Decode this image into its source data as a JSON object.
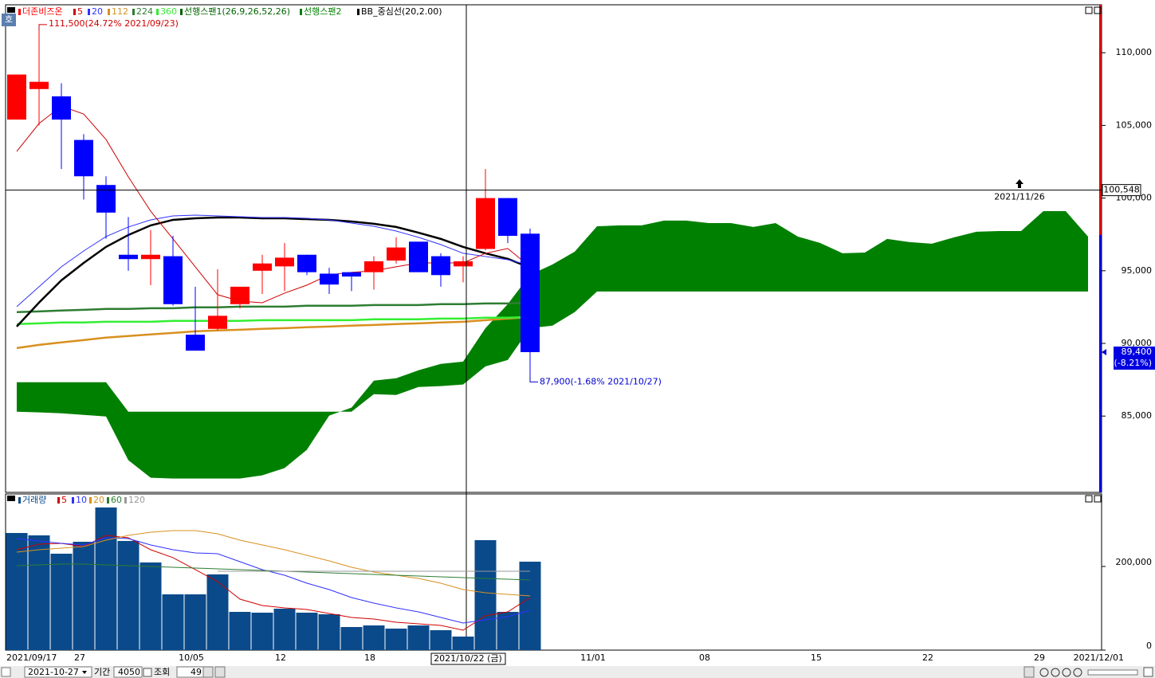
{
  "chart_data": [
    {
      "type": "candlestick",
      "title": "더존비즈온",
      "categories": [
        "2021/09/17",
        null,
        null,
        "27",
        null,
        null,
        null,
        null,
        "10/05",
        null,
        null,
        null,
        "12",
        null,
        null,
        null,
        "18",
        null,
        null,
        null,
        null,
        null,
        null,
        null,
        null,
        null,
        "11/01",
        null,
        null,
        null,
        null,
        "08",
        null,
        null,
        null,
        null,
        "15",
        null,
        null,
        null,
        null,
        "22",
        null,
        null,
        null,
        null,
        "29",
        null,
        "2021/12/01"
      ],
      "open": [
        105400,
        107500,
        107000,
        104000,
        100900,
        96100,
        95800,
        96000,
        90600,
        91000,
        92700,
        95000,
        95300,
        96100,
        94800,
        94900,
        94900,
        95700,
        97000,
        96000,
        95300,
        96500,
        100000,
        97550,
        null,
        null,
        null,
        null,
        null,
        null,
        null,
        null,
        null,
        null,
        null,
        null,
        null,
        null,
        null,
        null,
        null,
        null,
        null,
        null,
        null,
        null,
        null,
        null,
        null
      ],
      "high": [
        108500,
        111500,
        107900,
        104400,
        101500,
        98700,
        97800,
        97400,
        93900,
        95100,
        93900,
        96100,
        96900,
        96100,
        95200,
        94900,
        96000,
        97300,
        97000,
        96200,
        96000,
        102000,
        100000,
        97900,
        null,
        null,
        null,
        null,
        null,
        null,
        null,
        null,
        null,
        null,
        null,
        null,
        null,
        null,
        null,
        null,
        null,
        null,
        null,
        null,
        null,
        null,
        null,
        null,
        null
      ],
      "low": [
        105400,
        105000,
        102000,
        99900,
        97200,
        95000,
        94000,
        92600,
        89500,
        90900,
        92400,
        93400,
        93600,
        94700,
        93400,
        93600,
        93700,
        95500,
        94900,
        93900,
        94200,
        96400,
        96900,
        87900,
        null,
        null,
        null,
        null,
        null,
        null,
        null,
        null,
        null,
        null,
        null,
        null,
        null,
        null,
        null,
        null,
        null,
        null,
        null,
        null,
        null,
        null,
        null,
        null,
        null
      ],
      "close": [
        108500,
        108000,
        105400,
        101500,
        99000,
        95800,
        96100,
        92700,
        89500,
        91900,
        93900,
        95500,
        95900,
        94900,
        94050,
        94600,
        95650,
        96600,
        94900,
        94700,
        95650,
        100000,
        97400,
        89400,
        null,
        null,
        null,
        null,
        null,
        null,
        null,
        null,
        null,
        null,
        null,
        null,
        null,
        null,
        null,
        null,
        null,
        null,
        null,
        null,
        null,
        null,
        null,
        null,
        null
      ],
      "up_color": "#ff0000",
      "down_color": "#0000ff",
      "series": [
        {
          "name": "5",
          "color": "#d00000",
          "width": 1,
          "values": [
            103210,
            105130,
            106330,
            105780,
            104030,
            101460,
            99100,
            97190,
            95270,
            93350,
            92910,
            92800,
            93460,
            94010,
            94720,
            94890,
            95000,
            95270,
            95540,
            95540,
            95540,
            96200,
            96530,
            95270,
            null,
            null,
            null,
            null,
            null,
            null,
            null,
            null,
            null,
            null,
            null,
            null,
            null,
            null,
            null,
            null,
            null,
            null,
            null,
            null,
            null,
            null,
            null,
            null,
            null
          ]
        },
        {
          "name": "20",
          "color": "#3030ff",
          "width": 1,
          "values": [
            92530,
            93900,
            95270,
            96360,
            97350,
            98010,
            98500,
            98770,
            98830,
            98770,
            98720,
            98660,
            98660,
            98610,
            98500,
            98280,
            98060,
            97730,
            97300,
            96800,
            96200,
            95980,
            95760,
            95380,
            null,
            null,
            null,
            null,
            null,
            null,
            null,
            null,
            null,
            null,
            null,
            null,
            null,
            null,
            null,
            null,
            null,
            null,
            null,
            null,
            null,
            null,
            null,
            null,
            null
          ]
        },
        {
          "name": "112",
          "color": "#d89020",
          "width": 2.5,
          "values": [
            89680,
            89900,
            90070,
            90230,
            90400,
            90510,
            90620,
            90720,
            90830,
            90890,
            90940,
            91000,
            91050,
            91110,
            91160,
            91220,
            91270,
            91330,
            91380,
            91440,
            91490,
            91600,
            91710,
            91820,
            null,
            null,
            null,
            null,
            null,
            null,
            null,
            null,
            null,
            null,
            null,
            null,
            null,
            null,
            null,
            null,
            null,
            null,
            null,
            null,
            null,
            null,
            null,
            null,
            null
          ]
        },
        {
          "name": "224",
          "color": "#2e7d32",
          "width": 2.5,
          "values": [
            92150,
            92200,
            92260,
            92310,
            92370,
            92370,
            92420,
            92420,
            92480,
            92480,
            92530,
            92530,
            92530,
            92590,
            92590,
            92590,
            92640,
            92640,
            92640,
            92700,
            92700,
            92750,
            92750,
            92810,
            null,
            null,
            null,
            null,
            null,
            null,
            null,
            null,
            null,
            null,
            null,
            null,
            null,
            null,
            null,
            null,
            null,
            null,
            null,
            null,
            null,
            null,
            null,
            null,
            null
          ]
        },
        {
          "name": "360",
          "color": "#33ee33",
          "width": 2.5,
          "values": [
            91330,
            91380,
            91440,
            91440,
            91490,
            91490,
            91490,
            91550,
            91550,
            91550,
            91550,
            91600,
            91600,
            91600,
            91600,
            91600,
            91660,
            91660,
            91660,
            91710,
            91710,
            91770,
            91770,
            91820,
            null,
            null,
            null,
            null,
            null,
            null,
            null,
            null,
            null,
            null,
            null,
            null,
            null,
            null,
            null,
            null,
            null,
            null,
            null,
            null,
            null,
            null,
            null,
            null,
            null
          ]
        },
        {
          "name": "BB_중심선(20,2.00)",
          "color": "#000000",
          "width": 2.5,
          "values": [
            91160,
            92810,
            94340,
            95540,
            96640,
            97460,
            98120,
            98500,
            98610,
            98660,
            98660,
            98610,
            98610,
            98550,
            98500,
            98390,
            98230,
            98010,
            97620,
            97190,
            96640,
            96200,
            95820,
            95210,
            null,
            null,
            null,
            null,
            null,
            null,
            null,
            null,
            null,
            null,
            null,
            null,
            null,
            null,
            null,
            null,
            null,
            null,
            null,
            null,
            null,
            null,
            null,
            null,
            null
          ]
        }
      ],
      "cloud": {
        "color": "#008000",
        "span1": {
          "name": "선행스팬1(26,9,26,52,26)",
          "color": "#006400",
          "values": [
            85300,
            85250,
            85190,
            85080,
            84970,
            81960,
            80760,
            80700,
            80700,
            80700,
            80700,
            80920,
            81420,
            82680,
            85030,
            85580,
            87440,
            87600,
            88150,
            88590,
            88750,
            91050,
            92700,
            94720,
            95430,
            96310,
            98060,
            98120,
            98120,
            98450,
            98450,
            98280,
            98280,
            98010,
            98280,
            97350,
            96910,
            96200,
            96250,
            97190,
            96970,
            96860,
            97300,
            97680,
            97730,
            97730,
            99100,
            99100,
            97350
          ]
        },
        "span2": {
          "name": "선행스팬2",
          "color": "#008000",
          "values": [
            87330,
            87330,
            87330,
            87330,
            87330,
            85300,
            85300,
            85300,
            85300,
            85300,
            85300,
            85300,
            85300,
            85300,
            85300,
            85300,
            86510,
            86450,
            87000,
            87060,
            87170,
            88420,
            88860,
            91050,
            91220,
            92150,
            93570,
            93570,
            93570,
            93570,
            93570,
            93570,
            93570,
            93570,
            93570,
            93570,
            93570,
            93570,
            93570,
            93570,
            93570,
            93570,
            93570,
            93570,
            93570,
            93570,
            93570,
            93570,
            93570
          ]
        }
      },
      "annotations": [
        "111,500(24.72% 2021/09/23)",
        "87,900(-1.68% 2021/10/27)"
      ],
      "crosshair": {
        "price": {
          "value": 100548,
          "label": "100,548"
        },
        "date": "2021/11/26",
        "x_label": "2021/10/22 (금)"
      },
      "last": {
        "value": 89400,
        "label": "89,400",
        "change": "(-8.21%)"
      },
      "ylim": [
        79750,
        113300
      ],
      "yticks": [
        {
          "value": 85000,
          "label": "85,000"
        },
        {
          "value": 90000,
          "label": "90,000"
        },
        {
          "value": 95000,
          "label": "95,000"
        },
        {
          "value": 100000,
          "label": "100,000"
        },
        {
          "value": 105000,
          "label": "105,000"
        },
        {
          "value": 110000,
          "label": "110,000"
        }
      ]
    },
    {
      "type": "bar",
      "title": "거래량",
      "color": "#0a4a8a",
      "values": [
        280000,
        274300,
        230500,
        259000,
        341000,
        261000,
        209500,
        133300,
        133300,
        181000,
        91400,
        89500,
        99000,
        89500,
        85700,
        55200,
        59000,
        51400,
        59000,
        47600,
        32400,
        262900,
        91400,
        211400
      ],
      "series": [
        {
          "name": "5",
          "color": "#d00000",
          "values": [
            240000,
            253300,
            255200,
            247600,
            274300,
            268600,
            240000,
            221000,
            192400,
            163800,
            121900,
            106700,
            101000,
            97100,
            87600,
            78100,
            74300,
            66700,
            62900,
            59000,
            47600,
            81900,
            91400,
            125700
          ]
        },
        {
          "name": "10",
          "color": "#3030ff",
          "values": [
            266700,
            261000,
            255200,
            251400,
            268600,
            266700,
            251400,
            240000,
            232400,
            230500,
            211400,
            192400,
            179000,
            160000,
            144800,
            125700,
            112400,
            101000,
            91400,
            78100,
            64800,
            72400,
            80000,
            95200
          ]
        },
        {
          "name": "20",
          "color": "#d89020",
          "values": [
            234300,
            240000,
            243800,
            247600,
            262900,
            274300,
            281900,
            285700,
            285700,
            278100,
            262900,
            251400,
            240000,
            226700,
            213300,
            198100,
            186700,
            179000,
            171400,
            160000,
            144800,
            137100,
            133300,
            129500
          ]
        },
        {
          "name": "60",
          "color": "#2e7d32",
          "values": [
            201900,
            203800,
            205700,
            205700,
            203800,
            201900,
            200000,
            198100,
            196200,
            194300,
            192400,
            190500,
            188600,
            186700,
            184800,
            182900,
            181000,
            179000,
            177100,
            175200,
            173300,
            171400,
            169500,
            167600
          ]
        },
        {
          "name": "120",
          "color": "#999999",
          "values": [
            null,
            null,
            null,
            null,
            null,
            null,
            null,
            null,
            null,
            188600,
            188600,
            188600,
            188600,
            188600,
            188600,
            188600,
            188600,
            188600,
            188600,
            188600,
            188600,
            188600,
            188600,
            188600
          ]
        }
      ],
      "ylim": [
        0,
        373300
      ],
      "yticks": [
        0,
        {
          "value": 200000,
          "label": "200,000"
        }
      ]
    }
  ],
  "toolbar": {
    "date": "2021-10-27",
    "period_label": "기간",
    "period": "4050",
    "query": "조회",
    "count": "49",
    "button": "호"
  }
}
